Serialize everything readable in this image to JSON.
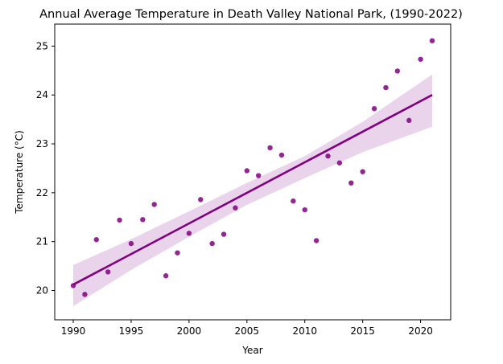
{
  "chart_data": {
    "type": "scatter",
    "title": "Annual Average Temperature in Death Valley National Park, (1990-2022)",
    "xlabel": "Year",
    "ylabel": "Temperature (°C)",
    "xlim": [
      1988.4,
      2022.6
    ],
    "ylim": [
      19.4,
      25.45
    ],
    "xticks": [
      1990,
      1995,
      2000,
      2005,
      2010,
      2015,
      2020
    ],
    "yticks": [
      20,
      21,
      22,
      23,
      24,
      25
    ],
    "grid": false,
    "series": [
      {
        "kind": "points",
        "color": "#800080",
        "x": [
          1990,
          1991,
          1992,
          1993,
          1994,
          1995,
          1996,
          1997,
          1998,
          1999,
          2000,
          2001,
          2002,
          2003,
          2004,
          2005,
          2006,
          2007,
          2008,
          2009,
          2010,
          2011,
          2012,
          2013,
          2014,
          2015,
          2016,
          2017,
          2018,
          2019,
          2020,
          2021
        ],
        "y": [
          20.1,
          19.92,
          21.04,
          20.38,
          21.44,
          20.96,
          21.45,
          21.76,
          20.3,
          20.77,
          21.17,
          21.86,
          20.96,
          21.15,
          21.69,
          22.45,
          22.35,
          22.92,
          22.77,
          21.83,
          21.65,
          21.02,
          22.75,
          22.61,
          22.2,
          22.43,
          23.72,
          24.15,
          24.49,
          23.48,
          24.73,
          25.11
        ]
      },
      {
        "kind": "regression-line",
        "color": "#800080",
        "x": [
          1990,
          2021
        ],
        "y": [
          20.12,
          24.0
        ]
      },
      {
        "kind": "confidence-band",
        "color": "#d8b0da",
        "x": [
          1990,
          1995,
          2000,
          2005,
          2010,
          2015,
          2021
        ],
        "lower": [
          19.68,
          20.42,
          21.1,
          21.75,
          22.3,
          22.83,
          23.35
        ],
        "upper": [
          20.52,
          21.05,
          21.62,
          22.2,
          22.75,
          23.45,
          24.42
        ]
      }
    ]
  }
}
